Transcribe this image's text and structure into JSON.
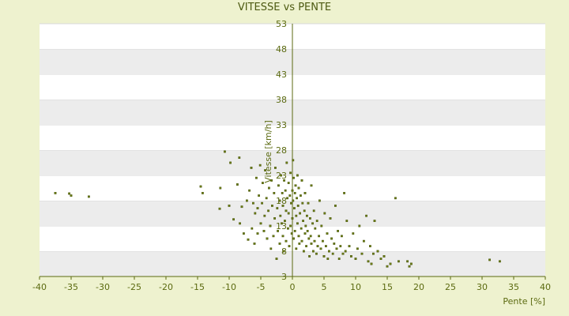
{
  "chart_data": {
    "type": "scatter",
    "title": "VITESSE vs PENTE",
    "xlabel": "Pente [%]",
    "ylabel": "Vitesse [km/h]",
    "xlim": [
      -40,
      40
    ],
    "ylim": [
      3,
      53
    ],
    "xticks": [
      -40,
      -35,
      -30,
      -25,
      -20,
      -15,
      -10,
      -5,
      0,
      5,
      10,
      15,
      20,
      25,
      30,
      35,
      40
    ],
    "yticks": [
      3,
      8,
      13,
      18,
      23,
      28,
      33,
      38,
      43,
      48,
      53
    ],
    "grid": "horizontal bands",
    "legend": "none",
    "colors": {
      "background": "#eef2cf",
      "band_light": "#ffffff",
      "band_dark": "#ececec",
      "points": "#6b7d12",
      "axis": "#5b6a10"
    },
    "series": [
      {
        "values": [
          [
            -37.5,
            19.5
          ],
          [
            -35.3,
            19.4
          ],
          [
            -35,
            19
          ],
          [
            -32.2,
            18.8
          ],
          [
            -14.5,
            20.8
          ],
          [
            -14.2,
            19.5
          ],
          [
            -11.4,
            20.5
          ],
          [
            -11.5,
            16.4
          ],
          [
            -10.7,
            27.7
          ],
          [
            -10,
            17
          ],
          [
            -9.8,
            25.5
          ],
          [
            -9.3,
            14.3
          ],
          [
            -8.7,
            21.2
          ],
          [
            -8.4,
            26.5
          ],
          [
            -8.3,
            13.5
          ],
          [
            -8,
            16.8
          ],
          [
            -7.7,
            11.5
          ],
          [
            -7.2,
            18
          ],
          [
            -7,
            10.3
          ],
          [
            -6.8,
            20
          ],
          [
            -6.5,
            24.5
          ],
          [
            -6.4,
            12.5
          ],
          [
            -6.2,
            17.5
          ],
          [
            -6,
            9.5
          ],
          [
            -5.9,
            15.5
          ],
          [
            -5.7,
            22.5
          ],
          [
            -5.5,
            16.5
          ],
          [
            -5.5,
            11.5
          ],
          [
            -5.3,
            19
          ],
          [
            -5.1,
            25
          ],
          [
            -5,
            13.5
          ],
          [
            -4.8,
            17.5
          ],
          [
            -4.7,
            21.5
          ],
          [
            -4.5,
            12
          ],
          [
            -4.4,
            15
          ],
          [
            -4.3,
            24
          ],
          [
            -4.1,
            18.5
          ],
          [
            -4,
            10.5
          ],
          [
            -3.8,
            16
          ],
          [
            -3.7,
            20.5
          ],
          [
            -3.5,
            13
          ],
          [
            -3.4,
            8.5
          ],
          [
            -3.3,
            22
          ],
          [
            -3.2,
            17
          ],
          [
            -3,
            11
          ],
          [
            -2.9,
            19.5
          ],
          [
            -2.8,
            14.5
          ],
          [
            -2.7,
            24.5
          ],
          [
            -2.5,
            6.5
          ],
          [
            -2.4,
            16.5
          ],
          [
            -2.3,
            12
          ],
          [
            -2.2,
            21
          ],
          [
            -2,
            18
          ],
          [
            -2,
            9.5
          ],
          [
            -1.9,
            15
          ],
          [
            -1.8,
            23
          ],
          [
            -1.7,
            13.5
          ],
          [
            -1.6,
            19.5
          ],
          [
            -1.5,
            11
          ],
          [
            -1.5,
            17
          ],
          [
            -1.4,
            8
          ],
          [
            -1.3,
            22
          ],
          [
            -1.2,
            14
          ],
          [
            -1.1,
            20
          ],
          [
            -1,
            16
          ],
          [
            -1,
            10
          ],
          [
            -0.9,
            25.5
          ],
          [
            -0.8,
            18.5
          ],
          [
            -0.7,
            12.5
          ],
          [
            -0.6,
            21.5
          ],
          [
            -0.6,
            15.5
          ],
          [
            -0.5,
            9
          ],
          [
            -0.4,
            19
          ],
          [
            -0.3,
            13
          ],
          [
            -0.3,
            23.5
          ],
          [
            -0.2,
            17.5
          ],
          [
            -0.1,
            11.5
          ],
          [
            0,
            20
          ],
          [
            0,
            14.5
          ],
          [
            0.1,
            26
          ],
          [
            0.1,
            18
          ],
          [
            0.2,
            22.5
          ],
          [
            0.2,
            10.5
          ],
          [
            0.3,
            16.5
          ],
          [
            0.4,
            19.5
          ],
          [
            0.4,
            12
          ],
          [
            0.5,
            21
          ],
          [
            0.6,
            15
          ],
          [
            0.6,
            8.5
          ],
          [
            0.7,
            18.5
          ],
          [
            0.8,
            23
          ],
          [
            0.8,
            13.5
          ],
          [
            0.9,
            17
          ],
          [
            1,
            11
          ],
          [
            1,
            20.5
          ],
          [
            1.1,
            9.5
          ],
          [
            1.2,
            15.5
          ],
          [
            1.3,
            19
          ],
          [
            1.4,
            12.5
          ],
          [
            1.5,
            22
          ],
          [
            1.5,
            10
          ],
          [
            1.6,
            17.5
          ],
          [
            1.7,
            14
          ],
          [
            1.8,
            8
          ],
          [
            1.9,
            16
          ],
          [
            2,
            11.5
          ],
          [
            2,
            19.5
          ],
          [
            2.1,
            13
          ],
          [
            2.2,
            9
          ],
          [
            2.3,
            15
          ],
          [
            2.4,
            12
          ],
          [
            2.5,
            17.5
          ],
          [
            2.6,
            10.5
          ],
          [
            2.7,
            7
          ],
          [
            2.8,
            14.5
          ],
          [
            2.9,
            11
          ],
          [
            3,
            9.5
          ],
          [
            3,
            21
          ],
          [
            3.2,
            13.5
          ],
          [
            3.3,
            8
          ],
          [
            3.4,
            16
          ],
          [
            3.5,
            10
          ],
          [
            3.6,
            12.5
          ],
          [
            3.8,
            7.5
          ],
          [
            3.9,
            14
          ],
          [
            4,
            9
          ],
          [
            4.2,
            11
          ],
          [
            4.3,
            18
          ],
          [
            4.5,
            8.5
          ],
          [
            4.6,
            13
          ],
          [
            4.8,
            10
          ],
          [
            5,
            7
          ],
          [
            5.1,
            15.5
          ],
          [
            5.3,
            9
          ],
          [
            5.5,
            11.5
          ],
          [
            5.6,
            6.5
          ],
          [
            5.8,
            8
          ],
          [
            6,
            14.5
          ],
          [
            6.2,
            10.5
          ],
          [
            6.4,
            7.5
          ],
          [
            6.6,
            9.5
          ],
          [
            6.8,
            17
          ],
          [
            7,
            8.5
          ],
          [
            7.2,
            12
          ],
          [
            7.4,
            6.5
          ],
          [
            7.6,
            9
          ],
          [
            7.8,
            11
          ],
          [
            8,
            7.5
          ],
          [
            8.2,
            19.5
          ],
          [
            8.4,
            8
          ],
          [
            8.6,
            14
          ],
          [
            9,
            9
          ],
          [
            9.3,
            7
          ],
          [
            9.6,
            11.5
          ],
          [
            10,
            6.5
          ],
          [
            10.3,
            8.5
          ],
          [
            10.6,
            13
          ],
          [
            11,
            7.5
          ],
          [
            11.3,
            10
          ],
          [
            11.7,
            15
          ],
          [
            12,
            6
          ],
          [
            12.3,
            9
          ],
          [
            12.5,
            5.5
          ],
          [
            12.8,
            7.5
          ],
          [
            13,
            14
          ],
          [
            13.5,
            8
          ],
          [
            14,
            6.5
          ],
          [
            14.5,
            7
          ],
          [
            15,
            5
          ],
          [
            15.5,
            5.5
          ],
          [
            16.3,
            18.5
          ],
          [
            16.8,
            6
          ],
          [
            18.2,
            6
          ],
          [
            18.5,
            5
          ],
          [
            18.8,
            5.5
          ],
          [
            31.2,
            6.3
          ],
          [
            32.8,
            6
          ]
        ]
      }
    ]
  }
}
